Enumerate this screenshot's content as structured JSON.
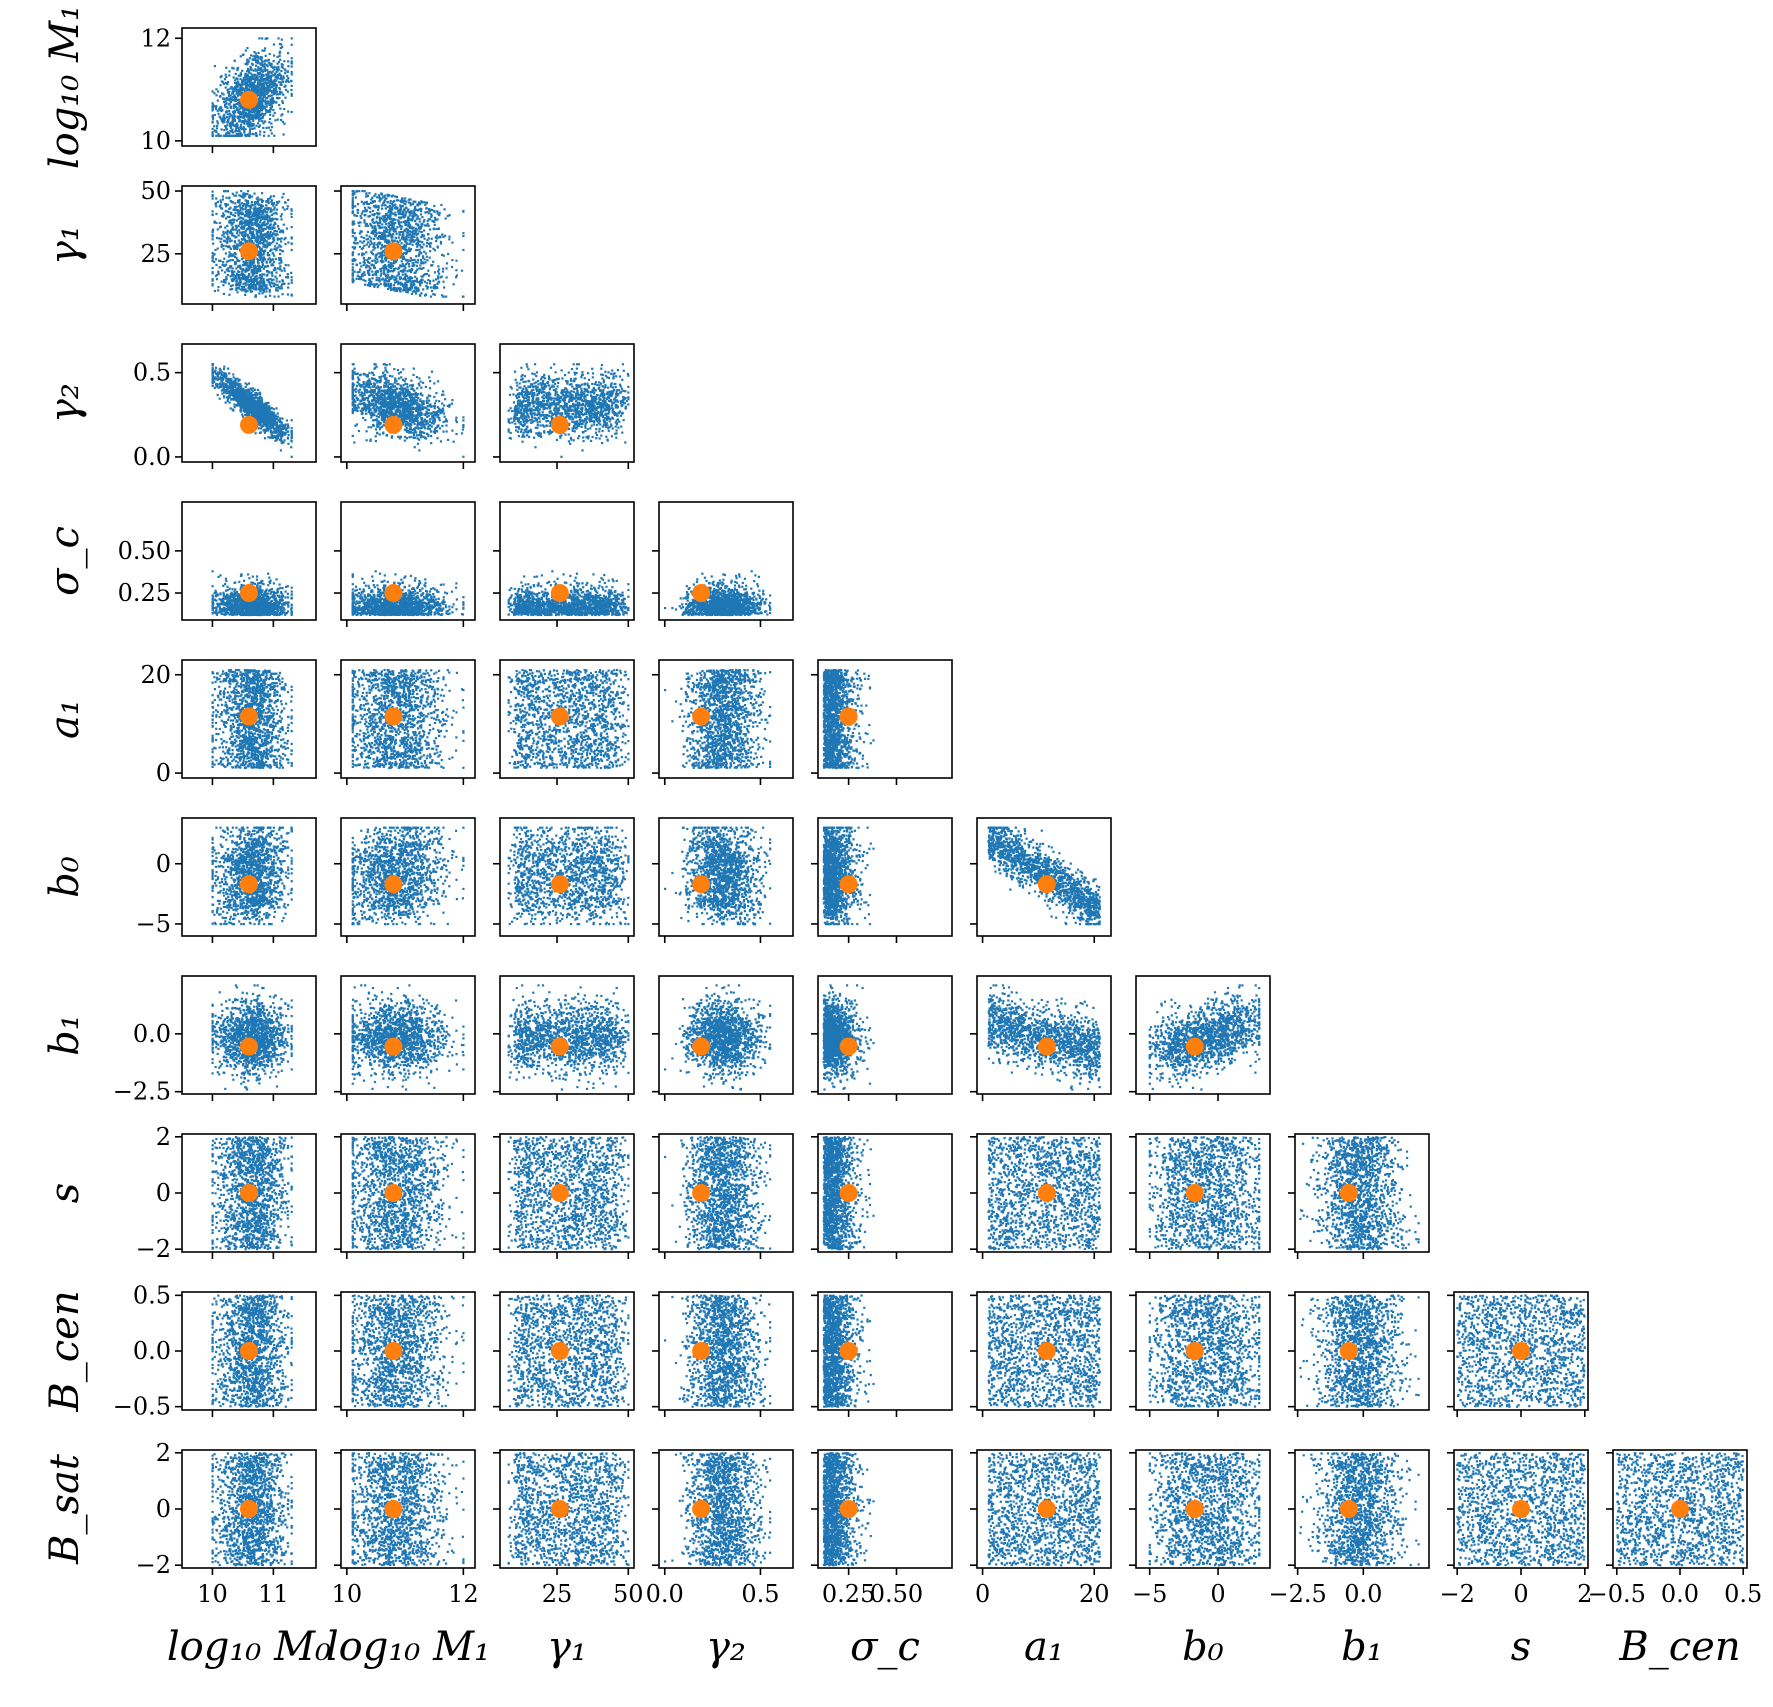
{
  "chart_data": {
    "type": "scatter",
    "layout": "corner-plot-lower-triangle",
    "sample_color": "#1f77b4",
    "point_color": "#ff7f0e",
    "grid": false,
    "legend": "none",
    "parameters": [
      {
        "key": "log10_M0",
        "label": "log₁₀ M₀",
        "range": [
          9.5,
          11.7
        ],
        "ticks": [
          {
            "v": 10,
            "t": "10"
          },
          {
            "v": 11,
            "t": "11"
          }
        ]
      },
      {
        "key": "log10_M1",
        "label": "log₁₀ M₁",
        "range": [
          9.9,
          12.2
        ],
        "ticks": [
          {
            "v": 10,
            "t": "10"
          },
          {
            "v": 12,
            "t": "12"
          }
        ]
      },
      {
        "key": "gamma1",
        "label": "γ₁",
        "range": [
          5,
          52
        ],
        "ticks": [
          {
            "v": 25,
            "t": "25"
          },
          {
            "v": 50,
            "t": "50"
          }
        ]
      },
      {
        "key": "gamma2",
        "label": "γ₂",
        "range": [
          -0.03,
          0.67
        ],
        "ticks": [
          {
            "v": 0.0,
            "t": "0.0"
          },
          {
            "v": 0.5,
            "t": "0.5"
          }
        ]
      },
      {
        "key": "sigma_c",
        "label": "σ_c",
        "range": [
          0.09,
          0.79
        ],
        "ticks": [
          {
            "v": 0.25,
            "t": "0.25"
          },
          {
            "v": 0.5,
            "t": "0.50"
          }
        ]
      },
      {
        "key": "a1",
        "label": "a₁",
        "range": [
          -1,
          23
        ],
        "ticks": [
          {
            "v": 0,
            "t": "0"
          },
          {
            "v": 20,
            "t": "20"
          }
        ]
      },
      {
        "key": "b0",
        "label": "b₀",
        "range": [
          -6,
          3.8
        ],
        "ticks": [
          {
            "v": -5,
            "t": "−5"
          },
          {
            "v": 0,
            "t": "0"
          }
        ]
      },
      {
        "key": "b1",
        "label": "b₁",
        "range": [
          -2.6,
          2.5
        ],
        "ticks": [
          {
            "v": -2.5,
            "t": "−2.5"
          },
          {
            "v": 0.0,
            "t": "0.0"
          }
        ]
      },
      {
        "key": "s",
        "label": "s",
        "range": [
          -2.1,
          2.1
        ],
        "ticks": [
          {
            "v": -2,
            "t": "−2"
          },
          {
            "v": 0,
            "t": "0"
          },
          {
            "v": 2,
            "t": "2"
          }
        ]
      },
      {
        "key": "B_cen",
        "label": "B_cen",
        "range": [
          -0.53,
          0.53
        ],
        "ticks": [
          {
            "v": -0.5,
            "t": "−0.5"
          },
          {
            "v": 0.0,
            "t": "0.0"
          },
          {
            "v": 0.5,
            "t": "0.5"
          }
        ]
      },
      {
        "key": "B_sat",
        "label": "B_sat",
        "range": [
          -2.1,
          2.1
        ],
        "ticks": [
          {
            "v": -2,
            "t": "−2"
          },
          {
            "v": 0,
            "t": "0"
          },
          {
            "v": 2,
            "t": "2"
          }
        ]
      }
    ],
    "fiducial_point": {
      "log10_M0": 10.6,
      "log10_M1": 10.8,
      "gamma1": 26,
      "gamma2": 0.19,
      "sigma_c": 0.25,
      "a1": 11.5,
      "b0": -1.7,
      "b1": -0.55,
      "s": 0.0,
      "B_cen": 0.0,
      "B_sat": 0.0
    },
    "sample_bounds": {
      "log10_M0": [
        10.0,
        11.3
      ],
      "log10_M1": [
        10.1,
        12.0
      ],
      "gamma1": [
        8,
        50
      ],
      "gamma2": [
        0.0,
        0.55
      ],
      "sigma_c": [
        0.12,
        0.45
      ],
      "a1": [
        1,
        21
      ],
      "b0": [
        -5,
        3
      ],
      "b1": [
        -2.4,
        2.1
      ],
      "s": [
        -2,
        2
      ],
      "B_cen": [
        -0.5,
        0.5
      ],
      "B_sat": [
        -2,
        2
      ]
    }
  }
}
